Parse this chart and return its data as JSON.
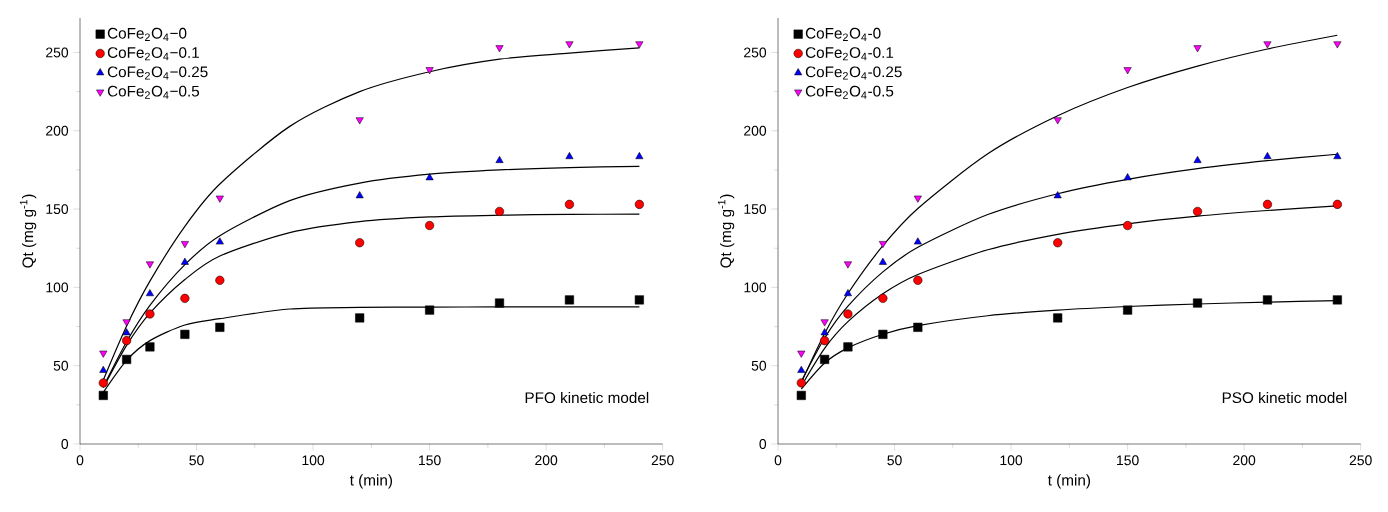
{
  "chart_data": [
    {
      "type": "scatter",
      "xlabel": "t (min)",
      "ylabel": "Qt (mg g$^{-1}$)",
      "xlim": [
        0,
        250
      ],
      "ylim": [
        0,
        272
      ],
      "xticks": [
        0,
        50,
        100,
        150,
        200,
        250
      ],
      "yticks": [
        0,
        50,
        100,
        150,
        200,
        250
      ],
      "legend": "top left",
      "grid": false,
      "annotations": [
        "PFO kinetic model"
      ],
      "x": [
        10,
        20,
        30,
        45,
        60,
        120,
        150,
        180,
        210,
        240
      ],
      "series": [
        {
          "name": "CoFe$_{2}$O$_{4}$−0",
          "color": "#000000",
          "marker": "square",
          "values": [
            31,
            54,
            62,
            70,
            74.5,
            80.5,
            85.5,
            90,
            92,
            92
          ]
        },
        {
          "name": "CoFe$_{2}$O$_{4}$−0.1",
          "color": "#ff0000",
          "marker": "circle",
          "values": [
            39,
            66,
            83,
            93,
            104.5,
            128.5,
            139.5,
            148.5,
            153,
            153
          ]
        },
        {
          "name": "CoFe$_{2}$O$_{4}$−0.25",
          "color": "#0000ff",
          "marker": "triangle",
          "values": [
            47,
            71,
            96,
            116,
            129,
            158.5,
            170,
            181,
            183.5,
            183.5
          ]
        },
        {
          "name": "CoFe$_{2}$O$_{4}$−0.5",
          "color": "#ff00ff",
          "marker": "triangle-down",
          "values": [
            58,
            78,
            115,
            128,
            157,
            207,
            239,
            253,
            255.5,
            255.5
          ]
        },
        {
          "type": "line",
          "color": "#000000",
          "marker": "none",
          "x": [
            10,
            20,
            30,
            45,
            60,
            90,
            120,
            150,
            180,
            210,
            240
          ],
          "values": [
            33,
            53.4,
            66,
            76,
            80,
            86.2,
            87.2,
            87.4,
            87.5,
            87.5,
            87.5
          ]
        },
        {
          "type": "line",
          "color": "#000000",
          "marker": "none",
          "x": [
            10,
            20,
            30,
            45,
            60,
            90,
            120,
            150,
            180,
            210,
            240
          ],
          "values": [
            36,
            63,
            83.5,
            105,
            120,
            135,
            142,
            145,
            146.1,
            146.6,
            146.8
          ]
        },
        {
          "type": "line",
          "color": "#000000",
          "marker": "none",
          "x": [
            10,
            20,
            30,
            45,
            60,
            90,
            120,
            150,
            180,
            210,
            240
          ],
          "values": [
            36.5,
            65.3,
            88.5,
            114.5,
            133,
            155.4,
            166.6,
            172.3,
            175,
            176.5,
            177.3
          ]
        },
        {
          "type": "line",
          "color": "#000000",
          "marker": "none",
          "x": [
            10,
            20,
            30,
            45,
            60,
            90,
            120,
            150,
            180,
            210,
            240
          ],
          "values": [
            40.9,
            75.3,
            104,
            139,
            166,
            202.8,
            225,
            237.7,
            245.7,
            249.6,
            252.9
          ]
        }
      ]
    },
    {
      "type": "scatter",
      "xlabel": "t (min)",
      "ylabel": "Qt (mg g$^{-1}$)",
      "xlim": [
        0,
        250
      ],
      "ylim": [
        0,
        272
      ],
      "xticks": [
        0,
        50,
        100,
        150,
        200,
        250
      ],
      "yticks": [
        0,
        50,
        100,
        150,
        200,
        250
      ],
      "legend": "top left",
      "grid": false,
      "annotations": [
        "PSO kinetic model"
      ],
      "x": [
        10,
        20,
        30,
        45,
        60,
        120,
        150,
        180,
        210,
        240
      ],
      "series": [
        {
          "name": "CoFe$_{2}$O$_{4}$-0",
          "color": "#000000",
          "marker": "square",
          "values": [
            31,
            54,
            62,
            70,
            74.5,
            80.5,
            85.5,
            90,
            92,
            92
          ]
        },
        {
          "name": "CoFe$_{2}$O$_{4}$-0.1",
          "color": "#ff0000",
          "marker": "circle",
          "values": [
            39,
            66,
            83,
            93,
            104.5,
            128.5,
            139.5,
            148.5,
            153,
            153
          ]
        },
        {
          "name": "CoFe$_{2}$O$_{4}$-0.25",
          "color": "#0000ff",
          "marker": "triangle",
          "values": [
            47,
            71,
            96,
            116,
            129,
            158.5,
            170,
            181,
            183.5,
            183.5
          ]
        },
        {
          "name": "CoFe$_{2}$O$_{4}$-0.5",
          "color": "#ff00ff",
          "marker": "triangle-down",
          "values": [
            58,
            78,
            115,
            128,
            157,
            207,
            239,
            253,
            255.5,
            255.5
          ]
        },
        {
          "type": "line",
          "color": "#000000",
          "marker": "none",
          "x": [
            10,
            20,
            30,
            45,
            60,
            90,
            120,
            150,
            180,
            210,
            240
          ],
          "values": [
            35,
            51.7,
            61.4,
            70.1,
            75.6,
            81.9,
            85.5,
            87.8,
            89.4,
            90.6,
            91.5
          ]
        },
        {
          "type": "line",
          "color": "#000000",
          "marker": "none",
          "x": [
            10,
            20,
            30,
            45,
            60,
            90,
            120,
            150,
            180,
            210,
            240
          ],
          "values": [
            37,
            61.1,
            78.1,
            95.9,
            108.2,
            124,
            133.9,
            140.6,
            145.5,
            149.1,
            152
          ]
        },
        {
          "type": "line",
          "color": "#000000",
          "marker": "none",
          "x": [
            10,
            20,
            30,
            45,
            60,
            90,
            120,
            150,
            180,
            210,
            240
          ],
          "values": [
            40,
            67.7,
            88,
            109.9,
            125.6,
            146.5,
            159.8,
            169,
            175.8,
            180.9,
            185
          ]
        },
        {
          "type": "line",
          "color": "#000000",
          "marker": "none",
          "x": [
            10,
            20,
            30,
            45,
            60,
            90,
            120,
            150,
            180,
            210,
            240
          ],
          "values": [
            39.3,
            70.6,
            96.1,
            126.6,
            150.4,
            185.3,
            209.6,
            227.6,
            241.3,
            252.2,
            261
          ]
        }
      ]
    }
  ]
}
